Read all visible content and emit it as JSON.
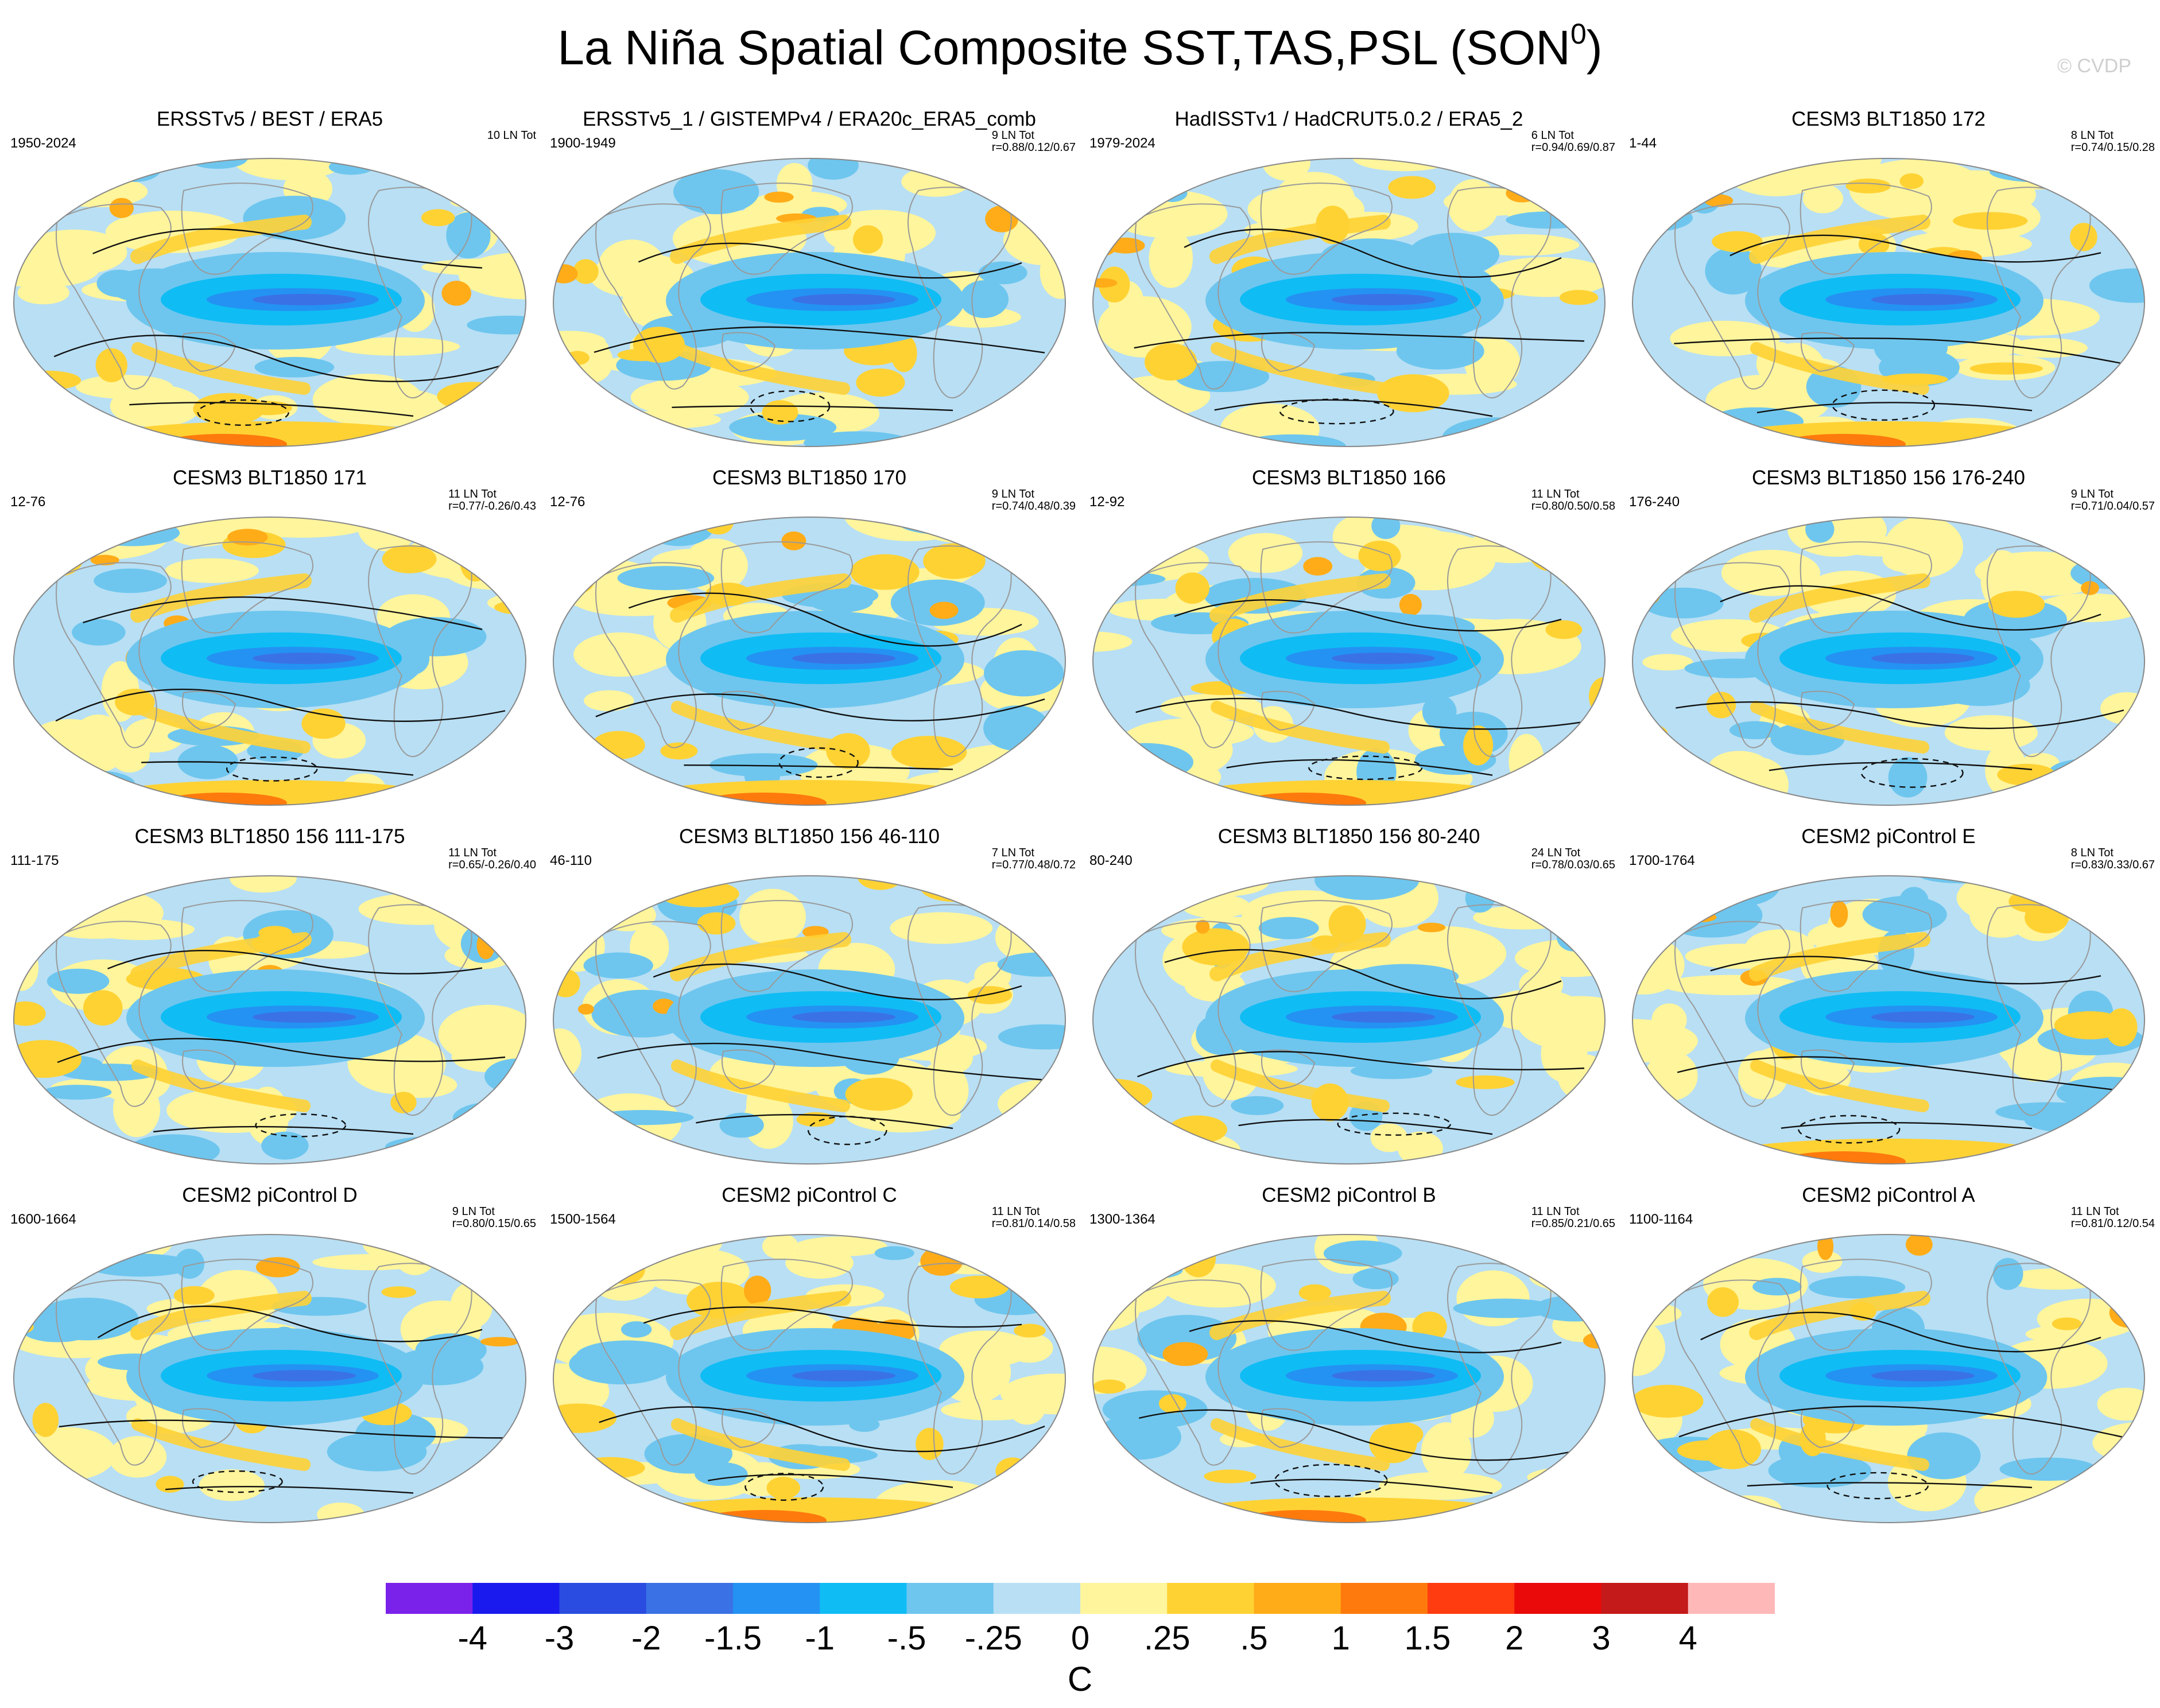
{
  "title": "La Niña Spatial Composite SST,TAS,PSL (SON",
  "title_sup": "0",
  "title_close": ")",
  "credit": "© CVDP",
  "panels": [
    {
      "title": "ERSSTv5 / BEST / ERA5",
      "period": "1950-2024",
      "count": "10 LN Tot",
      "r": ""
    },
    {
      "title": "ERSSTv5_1 / GISTEMPv4 / ERA20c_ERA5_comb",
      "period": "1900-1949",
      "count": "9 LN Tot",
      "r": "r=0.88/0.12/0.67"
    },
    {
      "title": "HadISSTv1 / HadCRUT5.0.2 / ERA5_2",
      "period": "1979-2024",
      "count": "6 LN Tot",
      "r": "r=0.94/0.69/0.87"
    },
    {
      "title": "CESM3 BLT1850 172",
      "period": "1-44",
      "count": "8 LN Tot",
      "r": "r=0.74/0.15/0.28"
    },
    {
      "title": "CESM3 BLT1850 171",
      "period": "12-76",
      "count": "11 LN Tot",
      "r": "r=0.77/-0.26/0.43"
    },
    {
      "title": "CESM3 BLT1850 170",
      "period": "12-76",
      "count": "9 LN Tot",
      "r": "r=0.74/0.48/0.39"
    },
    {
      "title": "CESM3 BLT1850 166",
      "period": "12-92",
      "count": "11 LN Tot",
      "r": "r=0.80/0.50/0.58"
    },
    {
      "title": "CESM3 BLT1850 156 176-240",
      "period": "176-240",
      "count": "9 LN Tot",
      "r": "r=0.71/0.04/0.57"
    },
    {
      "title": "CESM3 BLT1850 156 111-175",
      "period": "111-175",
      "count": "11 LN Tot",
      "r": "r=0.65/-0.26/0.40"
    },
    {
      "title": "CESM3 BLT1850 156 46-110",
      "period": "46-110",
      "count": "7 LN Tot",
      "r": "r=0.77/0.48/0.72"
    },
    {
      "title": "CESM3 BLT1850 156 80-240",
      "period": "80-240",
      "count": "24 LN Tot",
      "r": "r=0.78/0.03/0.65"
    },
    {
      "title": "CESM2 piControl E",
      "period": "1700-1764",
      "count": "8 LN Tot",
      "r": "r=0.83/0.33/0.67"
    },
    {
      "title": "CESM2 piControl D",
      "period": "1600-1664",
      "count": "9 LN Tot",
      "r": "r=0.80/0.15/0.65"
    },
    {
      "title": "CESM2 piControl C",
      "period": "1500-1564",
      "count": "11 LN Tot",
      "r": "r=0.81/0.14/0.58"
    },
    {
      "title": "CESM2 piControl B",
      "period": "1300-1364",
      "count": "11 LN Tot",
      "r": "r=0.85/0.21/0.65"
    },
    {
      "title": "CESM2 piControl A",
      "period": "1100-1164",
      "count": "11 LN Tot",
      "r": "r=0.81/0.12/0.54"
    }
  ],
  "colorbar": {
    "colors": [
      "#7b22ea",
      "#1a1aee",
      "#2a4ce0",
      "#3a72e6",
      "#2492f2",
      "#10bcf4",
      "#6ec6ee",
      "#b8dff4",
      "#fff59c",
      "#ffd234",
      "#ffac18",
      "#ff7a0c",
      "#ff3c10",
      "#ea0a0a",
      "#c41a1a",
      "#ffb8b8"
    ],
    "labels": [
      "-4",
      "-3",
      "-2",
      "-1.5",
      "-1",
      "-.5",
      "-.25",
      "0",
      ".25",
      ".5",
      "1",
      "1.5",
      "2",
      "3",
      "4"
    ],
    "unit": "C"
  }
}
